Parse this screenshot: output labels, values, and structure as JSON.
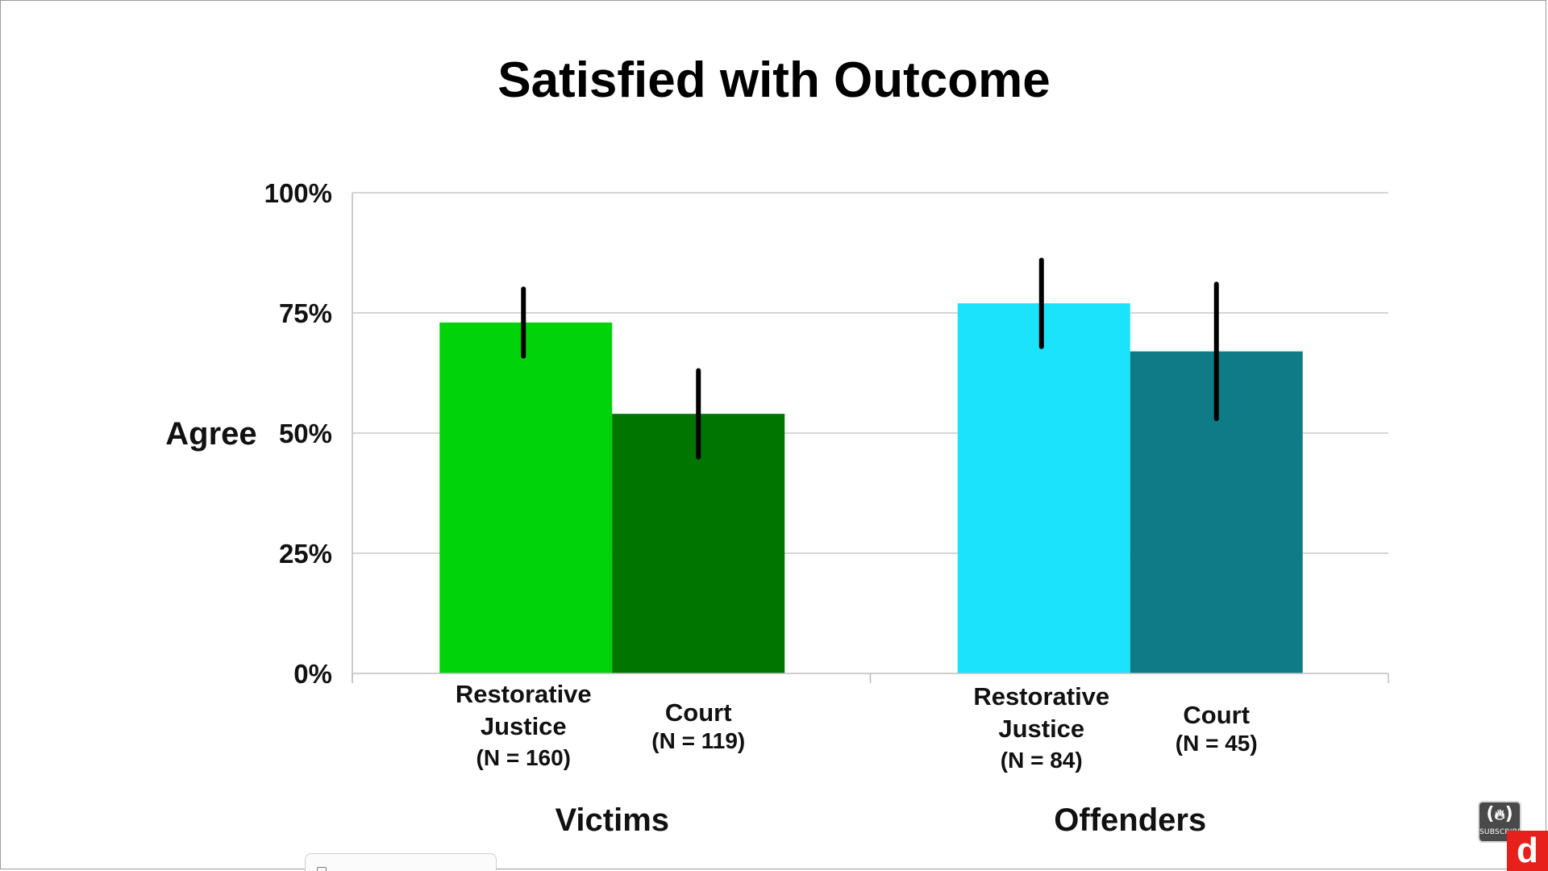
{
  "chart_data": {
    "type": "bar",
    "title": "Satisfied with Outcome",
    "ylabel": "Agree",
    "xlabel": "",
    "ylim": [
      0,
      100
    ],
    "yticks": [
      "0%",
      "25%",
      "50%",
      "75%",
      "100%"
    ],
    "ytick_values": [
      0,
      25,
      50,
      75,
      100
    ],
    "grid": true,
    "groups": [
      {
        "label": "Victims",
        "bars": [
          {
            "category_lines": [
              "Restorative",
              "Justice"
            ],
            "n_label": "(N = 160)",
            "value": 73,
            "error_low": 66,
            "error_high": 80,
            "color": "#00d30a"
          },
          {
            "category_lines": [
              "Court"
            ],
            "n_label": "(N = 119)",
            "value": 54,
            "error_low": 45,
            "error_high": 63,
            "color": "#007500"
          }
        ]
      },
      {
        "label": "Offenders",
        "bars": [
          {
            "category_lines": [
              "Restorative",
              "Justice"
            ],
            "n_label": "(N = 84)",
            "value": 77,
            "error_low": 68,
            "error_high": 86,
            "color": "#1ae3fb"
          },
          {
            "category_lines": [
              "Court"
            ],
            "n_label": "(N = 45)",
            "value": 67,
            "error_low": 53,
            "error_high": 81,
            "color": "#0e7b86"
          }
        ]
      }
    ]
  },
  "watermark": {
    "icon": "flame-icon",
    "subscribe_text": "SUBSCRIBE",
    "brand_letter": "d",
    "brand_color": "#e8201c"
  }
}
